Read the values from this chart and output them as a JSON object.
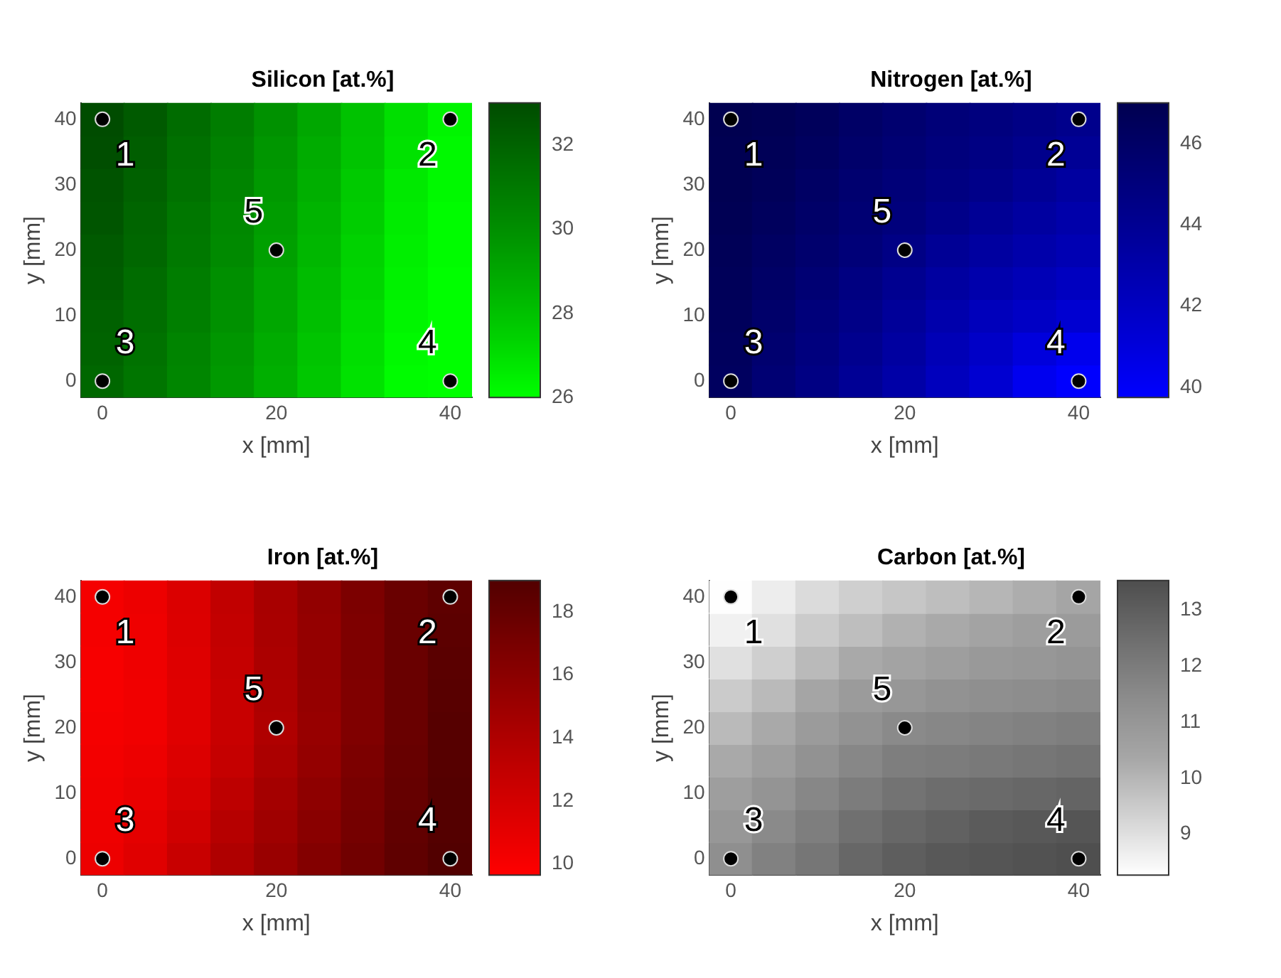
{
  "chart_data": [
    {
      "type": "heatmap",
      "title": "Silicon [at.%]",
      "xlabel": "x [mm]",
      "ylabel": "y [mm]",
      "clim": [
        26,
        33
      ],
      "cticks": [
        26,
        28,
        30,
        32
      ],
      "colors": [
        "#00ff00",
        "#00d200",
        "#00ac00",
        "#008a00",
        "#006c00",
        "#004c00"
      ],
      "categories": [
        "0",
        null,
        null,
        null,
        "20",
        null,
        null,
        null,
        "40"
      ],
      "y_categories": [
        "40",
        null,
        "30",
        null,
        "20",
        null,
        "10",
        null,
        "0"
      ],
      "cells": [
        [
          33.0,
          32.4,
          31.6,
          30.8,
          29.9,
          29.0,
          28.0,
          27.0,
          26.3
        ],
        [
          32.9,
          32.2,
          31.4,
          30.6,
          29.7,
          28.8,
          27.9,
          26.9,
          26.2
        ],
        [
          32.7,
          32.1,
          31.3,
          30.5,
          29.6,
          28.7,
          27.7,
          26.7,
          26.2
        ],
        [
          32.6,
          31.9,
          31.1,
          30.3,
          29.4,
          28.5,
          27.6,
          26.6,
          26.1
        ],
        [
          32.4,
          31.8,
          31.0,
          30.2,
          29.3,
          28.4,
          27.4,
          26.5,
          26.1
        ],
        [
          32.3,
          31.6,
          30.8,
          30.0,
          29.1,
          28.2,
          27.3,
          26.4,
          26.0
        ],
        [
          32.1,
          31.5,
          30.7,
          29.9,
          29.0,
          28.1,
          27.1,
          26.3,
          26.0
        ],
        [
          32.0,
          31.3,
          30.5,
          29.7,
          28.8,
          27.9,
          27.0,
          26.2,
          26.0
        ],
        [
          31.8,
          31.2,
          30.4,
          29.6,
          28.7,
          27.8,
          26.9,
          26.1,
          26.0
        ]
      ],
      "annotations": [
        {
          "text": "1",
          "x": "0",
          "y": "40"
        },
        {
          "text": "2",
          "x": "40",
          "y": "40"
        },
        {
          "text": "3",
          "x": "0",
          "y": "0"
        },
        {
          "text": "4",
          "x": "40",
          "y": "0"
        },
        {
          "text": "5",
          "x": "20",
          "y": "20"
        }
      ]
    },
    {
      "type": "heatmap",
      "title": "Nitrogen [at.%]",
      "xlabel": "x [mm]",
      "ylabel": "y [mm]",
      "clim": [
        39.75,
        47
      ],
      "cticks": [
        40,
        42,
        44,
        46
      ],
      "colors": [
        "#0000ff",
        "#0000d6",
        "#0000b2",
        "#000090",
        "#000070",
        "#000050"
      ],
      "categories": [
        "0",
        null,
        null,
        null,
        "20",
        null,
        null,
        null,
        "40"
      ],
      "y_categories": [
        "40",
        null,
        "30",
        null,
        "20",
        null,
        "10",
        null,
        "0"
      ],
      "cells": [
        [
          47.0,
          46.8,
          46.5,
          46.0,
          45.6,
          45.2,
          44.9,
          44.6,
          44.3
        ],
        [
          46.9,
          46.7,
          46.3,
          45.8,
          45.4,
          45.0,
          44.7,
          44.3,
          43.9
        ],
        [
          46.9,
          46.6,
          46.1,
          45.6,
          45.2,
          44.8,
          44.4,
          43.9,
          43.4
        ],
        [
          46.8,
          46.4,
          45.9,
          45.4,
          45.0,
          44.4,
          43.9,
          43.4,
          43.0
        ],
        [
          46.7,
          46.2,
          45.7,
          45.2,
          44.6,
          43.9,
          43.4,
          43.0,
          42.6
        ],
        [
          46.6,
          46.0,
          45.4,
          44.8,
          44.1,
          43.4,
          42.9,
          42.5,
          42.1
        ],
        [
          46.5,
          45.8,
          45.1,
          44.5,
          43.7,
          42.9,
          42.3,
          41.9,
          41.4
        ],
        [
          46.4,
          45.6,
          44.9,
          44.2,
          43.4,
          42.5,
          41.8,
          41.0,
          40.4
        ],
        [
          46.3,
          45.4,
          44.7,
          43.9,
          43.1,
          42.2,
          41.4,
          40.3,
          39.8
        ]
      ],
      "annotations": [
        {
          "text": "1",
          "x": "0",
          "y": "40"
        },
        {
          "text": "2",
          "x": "40",
          "y": "40"
        },
        {
          "text": "3",
          "x": "0",
          "y": "0"
        },
        {
          "text": "4",
          "x": "40",
          "y": "0"
        },
        {
          "text": "5",
          "x": "20",
          "y": "20"
        }
      ]
    },
    {
      "type": "heatmap",
      "title": "Iron [at.%]",
      "xlabel": "x [mm]",
      "ylabel": "y [mm]",
      "clim": [
        9.65,
        19
      ],
      "cticks": [
        10,
        12,
        14,
        16,
        18
      ],
      "colors": [
        "#ff0000",
        "#dc0000",
        "#ba0000",
        "#980000",
        "#760000",
        "#520000"
      ],
      "categories": [
        "0",
        null,
        null,
        null,
        "20",
        null,
        null,
        null,
        "40"
      ],
      "y_categories": [
        "40",
        null,
        "30",
        null,
        "20",
        null,
        "10",
        null,
        "0"
      ],
      "cells": [
        [
          10.2,
          10.6,
          11.6,
          13.0,
          14.4,
          15.6,
          16.8,
          17.8,
          18.4
        ],
        [
          10.2,
          10.5,
          11.5,
          12.9,
          14.3,
          15.5,
          16.7,
          17.8,
          18.5
        ],
        [
          10.1,
          10.5,
          11.4,
          12.8,
          14.2,
          15.5,
          16.7,
          17.8,
          18.6
        ],
        [
          10.1,
          10.4,
          11.3,
          12.6,
          14.1,
          15.4,
          16.6,
          17.8,
          18.7
        ],
        [
          10.2,
          10.4,
          11.3,
          12.6,
          14.0,
          15.3,
          16.6,
          17.8,
          18.8
        ],
        [
          10.3,
          10.6,
          11.5,
          12.8,
          14.2,
          15.5,
          16.8,
          17.9,
          18.8
        ],
        [
          10.4,
          10.8,
          11.8,
          13.2,
          14.6,
          15.8,
          17.0,
          18.0,
          18.9
        ],
        [
          10.5,
          11.1,
          12.2,
          13.6,
          14.9,
          16.1,
          17.2,
          18.2,
          18.9
        ],
        [
          10.6,
          11.3,
          12.6,
          14.0,
          15.2,
          16.4,
          17.4,
          18.3,
          19.0
        ]
      ],
      "annotations": [
        {
          "text": "1",
          "x": "0",
          "y": "40"
        },
        {
          "text": "2",
          "x": "40",
          "y": "40"
        },
        {
          "text": "3",
          "x": "0",
          "y": "0"
        },
        {
          "text": "4",
          "x": "40",
          "y": "0"
        },
        {
          "text": "5",
          "x": "20",
          "y": "20"
        }
      ]
    },
    {
      "type": "heatmap",
      "title": "Carbon [at.%]",
      "xlabel": "x [mm]",
      "ylabel": "y [mm]",
      "clim": [
        8.27,
        13.53
      ],
      "cticks": [
        9,
        10,
        11,
        12,
        13
      ],
      "colors": [
        "#ffffff",
        "#d2d2d2",
        "#a6a6a6",
        "#8c8c8c",
        "#6e6e6e",
        "#4e4e4e"
      ],
      "categories": [
        "0",
        null,
        null,
        null,
        "20",
        null,
        null,
        null,
        "40"
      ],
      "y_categories": [
        "40",
        null,
        "30",
        null,
        "20",
        null,
        "10",
        null,
        "0"
      ],
      "cells": [
        [
          8.3,
          8.7,
          9.1,
          9.4,
          9.6,
          9.8,
          10.0,
          10.2,
          10.4
        ],
        [
          8.6,
          9.0,
          9.5,
          9.8,
          10.1,
          10.3,
          10.5,
          10.7,
          10.8
        ],
        [
          9.0,
          9.4,
          9.9,
          10.3,
          10.5,
          10.7,
          10.9,
          11.0,
          11.1
        ],
        [
          9.5,
          9.9,
          10.4,
          10.8,
          11.0,
          11.2,
          11.3,
          11.4,
          11.5
        ],
        [
          9.9,
          10.3,
          10.8,
          11.2,
          11.5,
          11.6,
          11.7,
          11.8,
          11.9
        ],
        [
          10.3,
          10.7,
          11.2,
          11.6,
          11.9,
          12.0,
          12.1,
          12.2,
          12.3
        ],
        [
          10.7,
          11.1,
          11.6,
          12.0,
          12.3,
          12.5,
          12.6,
          12.7,
          12.8
        ],
        [
          11.0,
          11.5,
          11.9,
          12.4,
          12.7,
          12.9,
          13.1,
          13.2,
          13.3
        ],
        [
          11.3,
          11.8,
          12.2,
          12.7,
          13.0,
          13.2,
          13.3,
          13.4,
          13.5
        ]
      ],
      "annotations": [
        {
          "text": "1",
          "x": "0",
          "y": "40"
        },
        {
          "text": "2",
          "x": "40",
          "y": "40"
        },
        {
          "text": "3",
          "x": "0",
          "y": "0"
        },
        {
          "text": "4",
          "x": "40",
          "y": "0"
        },
        {
          "text": "5",
          "x": "20",
          "y": "20"
        }
      ]
    }
  ]
}
